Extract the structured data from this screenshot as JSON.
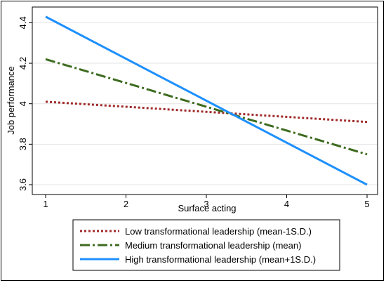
{
  "chart_data": {
    "type": "line",
    "title": "",
    "xlabel": "Surface acting",
    "ylabel": "Job performance",
    "xlim": [
      1,
      5
    ],
    "ylim": [
      3.6,
      4.45
    ],
    "xticks": [
      1,
      2,
      3,
      4,
      5
    ],
    "yticks": [
      3.6,
      3.8,
      4,
      4.2,
      4.4
    ],
    "x": [
      1,
      5
    ],
    "grid": "horizontal",
    "legend_position": "bottom",
    "series": [
      {
        "name": "Low transformational leadership (mean-1S.D.)",
        "values": [
          4.01,
          3.91
        ],
        "color": "#a02a2a",
        "style": "dotted"
      },
      {
        "name": "Medium transformational leadership (mean)",
        "values": [
          4.22,
          3.75
        ],
        "color": "#3d6b1f",
        "style": "dash-dot"
      },
      {
        "name": "High transformational leadership (mean+1S.D.)",
        "values": [
          4.43,
          3.6
        ],
        "color": "#1e90ff",
        "style": "solid"
      }
    ]
  }
}
